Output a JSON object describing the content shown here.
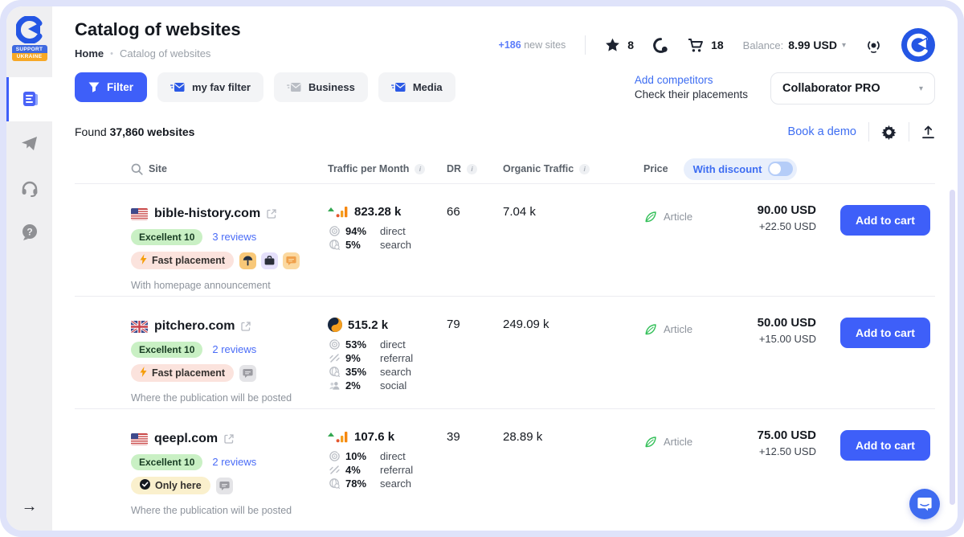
{
  "colors": {
    "primary": "#3e5ff9",
    "link": "#3d6df2",
    "frame": "#dfe3fa",
    "rating_badge": "#c9f0c4",
    "fast_badge": "#fbe3dd",
    "only_here_badge": "#faf0cd",
    "traffic_orange": "#f59e1e",
    "trend_green": "#33a852"
  },
  "glyphs": {
    "caret": "▾",
    "arrow_right": "→",
    "breadcrumb_dot": "•"
  },
  "sidebar": {
    "support_badge_line1": "SUPPORT",
    "support_badge_line2": "UKRAINE"
  },
  "header": {
    "title": "Catalog of websites",
    "breadcrumb_home": "Home",
    "breadcrumb_current": "Catalog of websites",
    "new_sites_count": "+186",
    "new_sites_label": "new sites",
    "favorites_count": "8",
    "cart_count": "18",
    "balance_label": "Balance:",
    "balance_value": "8.99 USD"
  },
  "toolbar": {
    "filter_label": "Filter",
    "fav_filter_label": "my fav filter",
    "business_label": "Business",
    "media_label": "Media",
    "add_competitors": "Add competitors",
    "check_placements": "Check their placements",
    "plan_label": "Collaborator PRO"
  },
  "subheader": {
    "found_prefix": "Found",
    "found_count": "37,860 websites",
    "book_demo": "Book a demo"
  },
  "table": {
    "headers": {
      "site": "Site",
      "traffic": "Traffic per Month",
      "dr": "DR",
      "organic": "Organic Traffic",
      "price": "Price",
      "discount_toggle": "With discount"
    },
    "rows": [
      {
        "flag": "us",
        "domain": "bible-history.com",
        "rating": "Excellent 10",
        "reviews": "3 reviews",
        "badge": {
          "kind": "fast",
          "label": "Fast placement"
        },
        "chips": [
          "tree",
          "briefcase",
          "chat-orange"
        ],
        "note": "With homepage announcement",
        "traffic": {
          "icon": "bars",
          "value": "823.28 k",
          "sources": [
            {
              "type": "direct",
              "pct": "94%",
              "label": "direct"
            },
            {
              "type": "search",
              "pct": "5%",
              "label": "search"
            }
          ]
        },
        "dr": "66",
        "organic": "7.04 k",
        "type_label": "Article",
        "price": "90.00 USD",
        "price_extra": "+22.50 USD",
        "action": "Add to cart"
      },
      {
        "flag": "gb",
        "domain": "pitchero.com",
        "rating": "Excellent 10",
        "reviews": "2 reviews",
        "badge": {
          "kind": "fast",
          "label": "Fast placement"
        },
        "chips": [
          "chat-gray"
        ],
        "note": "Where the publication will be posted",
        "traffic": {
          "icon": "similarweb",
          "value": "515.2 k",
          "sources": [
            {
              "type": "direct",
              "pct": "53%",
              "label": "direct"
            },
            {
              "type": "referral",
              "pct": "9%",
              "label": "referral"
            },
            {
              "type": "search",
              "pct": "35%",
              "label": "search"
            },
            {
              "type": "social",
              "pct": "2%",
              "label": "social"
            }
          ]
        },
        "dr": "79",
        "organic": "249.09 k",
        "type_label": "Article",
        "price": "50.00 USD",
        "price_extra": "+15.00 USD",
        "action": "Add to cart"
      },
      {
        "flag": "us",
        "domain": "qeepl.com",
        "rating": "Excellent 10",
        "reviews": "2 reviews",
        "badge": {
          "kind": "only-here",
          "label": "Only here"
        },
        "chips": [
          "chat-gray"
        ],
        "note": "Where the publication will be posted",
        "traffic": {
          "icon": "bars",
          "value": "107.6 k",
          "sources": [
            {
              "type": "direct",
              "pct": "10%",
              "label": "direct"
            },
            {
              "type": "referral",
              "pct": "4%",
              "label": "referral"
            },
            {
              "type": "search",
              "pct": "78%",
              "label": "search"
            }
          ]
        },
        "dr": "39",
        "organic": "28.89 k",
        "type_label": "Article",
        "price": "75.00 USD",
        "price_extra": "+12.50 USD",
        "action": "Add to cart"
      }
    ]
  }
}
